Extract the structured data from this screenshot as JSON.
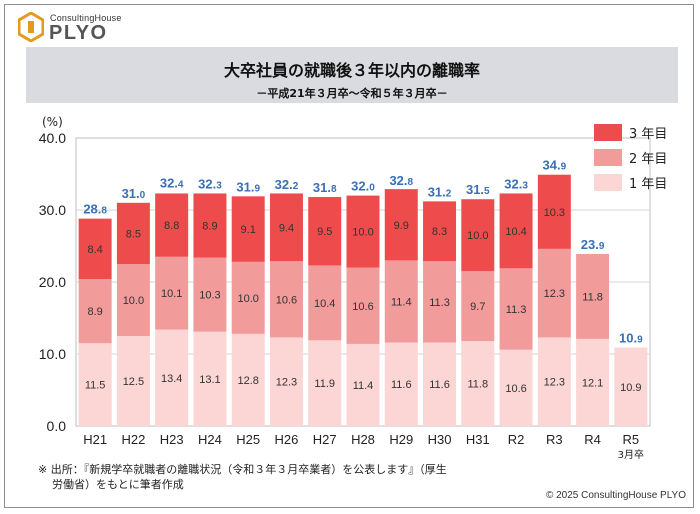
{
  "logo": {
    "small": "ConsultingHouse",
    "big": "PLYO"
  },
  "title": {
    "main": "大卒社員の就職後３年以内の離職率",
    "sub": "－平成21年３月卒～令和５年３月卒－"
  },
  "footer": {
    "source_line1": "※ 出所：『新規学卒就職者の離職状況（令和３年３月卒業者）を公表します』（厚生",
    "source_line2": "労働省）をもとに筆者作成",
    "copyright": "© 2025 ConsultingHouse PLYO"
  },
  "colors": {
    "year1": "#fcd5d5",
    "year2": "#f29b9b",
    "year3": "#ee4c4c",
    "total_label": "#3a6fb6",
    "grid": "#d4d4d4"
  },
  "chart_data": {
    "type": "bar",
    "stacked": true,
    "ylabel": "(%)",
    "ylim": [
      0,
      40
    ],
    "yticks": [
      "0.0",
      "10.0",
      "20.0",
      "30.0",
      "40.0"
    ],
    "ytick_values": [
      0,
      10,
      20,
      30,
      40
    ],
    "categories": [
      "H21",
      "H22",
      "H23",
      "H24",
      "H25",
      "H26",
      "H27",
      "H28",
      "H29",
      "H30",
      "H31",
      "R2",
      "R3",
      "R4",
      "R5"
    ],
    "category_notes": [
      "",
      "",
      "",
      "",
      "",
      "",
      "",
      "",
      "",
      "",
      "",
      "",
      "",
      "",
      "3月卒"
    ],
    "series": [
      {
        "name": "1 年目",
        "values": [
          11.5,
          12.5,
          13.4,
          13.1,
          12.8,
          12.3,
          11.9,
          11.4,
          11.6,
          11.6,
          11.8,
          10.6,
          12.3,
          12.1,
          10.9
        ]
      },
      {
        "name": "2 年目",
        "values": [
          8.9,
          10.0,
          10.1,
          10.3,
          10.0,
          10.6,
          10.4,
          10.6,
          11.4,
          11.3,
          9.7,
          11.3,
          12.3,
          11.8,
          null
        ]
      },
      {
        "name": "3 年目",
        "values": [
          8.4,
          8.5,
          8.8,
          8.9,
          9.1,
          9.4,
          9.5,
          10.0,
          9.9,
          8.3,
          10.0,
          10.4,
          10.3,
          null,
          null
        ]
      }
    ],
    "totals": [
      {
        "int": "28.",
        "dec": "8"
      },
      {
        "int": "31.",
        "dec": "0"
      },
      {
        "int": "32.",
        "dec": "4"
      },
      {
        "int": "32.",
        "dec": "3"
      },
      {
        "int": "31.",
        "dec": "9"
      },
      {
        "int": "32.",
        "dec": "2"
      },
      {
        "int": "31.",
        "dec": "8"
      },
      {
        "int": "32.",
        "dec": "0"
      },
      {
        "int": "32.",
        "dec": "8"
      },
      {
        "int": "31.",
        "dec": "2"
      },
      {
        "int": "31.",
        "dec": "5"
      },
      {
        "int": "32.",
        "dec": "3"
      },
      {
        "int": "34.",
        "dec": "9"
      },
      {
        "int": "23.",
        "dec": "9"
      },
      {
        "int": "10.",
        "dec": "9"
      }
    ],
    "total_values": [
      28.8,
      31.0,
      32.4,
      32.3,
      31.9,
      32.2,
      31.8,
      32.0,
      32.8,
      31.2,
      31.5,
      32.3,
      34.9,
      23.9,
      10.9
    ],
    "legend": [
      "3 年目",
      "2 年目",
      "1 年目"
    ],
    "legend_position": "top-right"
  }
}
